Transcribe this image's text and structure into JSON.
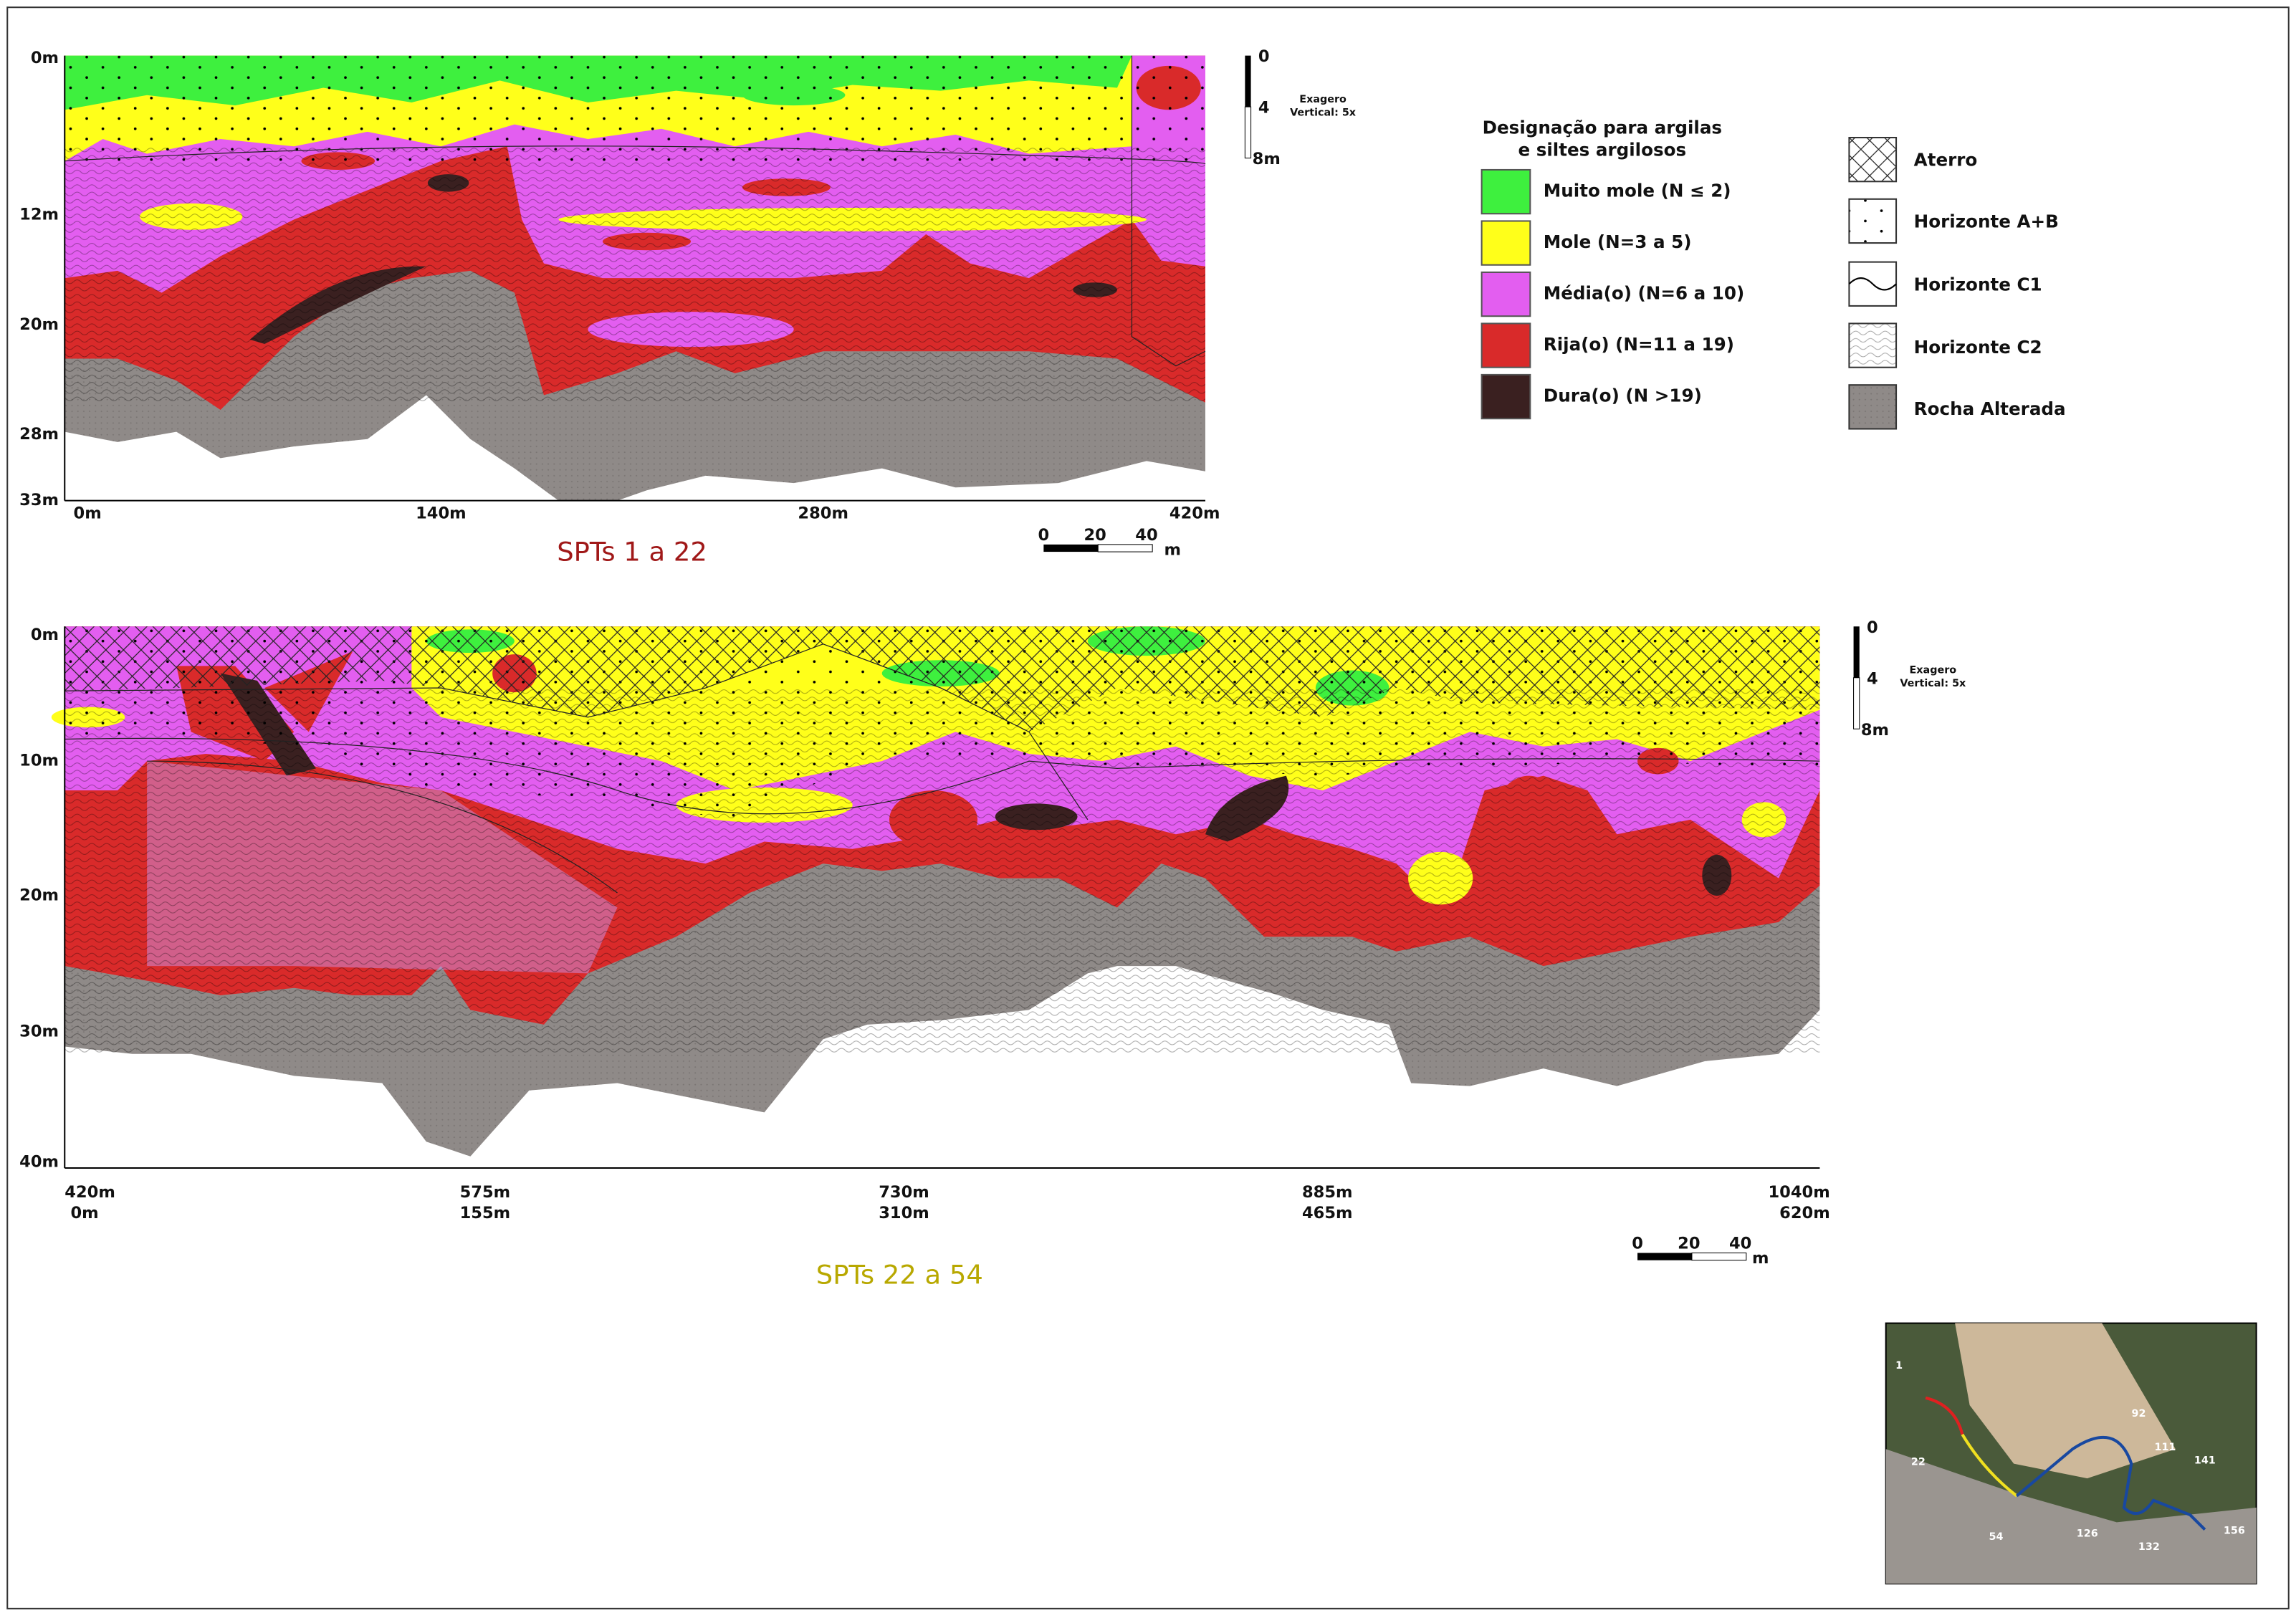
{
  "sections": [
    {
      "title": "SPTs 1 a 22",
      "depth_labels": [
        "0m",
        "12m",
        "20m",
        "28m",
        "33m"
      ],
      "distance_labels": [
        "0m",
        "140m",
        "280m",
        "420m"
      ],
      "vertical_scale": {
        "labels": [
          "0",
          "4",
          "8m"
        ],
        "note": [
          "Exagero",
          "Vertical: 5x"
        ]
      },
      "horizontal_scale": {
        "labels": [
          "0",
          "20",
          "40",
          "m"
        ]
      }
    },
    {
      "title": "SPTs 22 a 54",
      "depth_labels": [
        "0m",
        "10m",
        "20m",
        "30m",
        "40m"
      ],
      "distance_labels": [
        "420m",
        "575m",
        "730m",
        "885m",
        "1040m"
      ],
      "distance_labels_local": [
        "0m",
        "155m",
        "310m",
        "465m",
        "620m"
      ],
      "vertical_scale": {
        "labels": [
          "0",
          "4",
          "8m"
        ],
        "note": [
          "Exagero",
          "Vertical: 5x"
        ]
      },
      "horizontal_scale": {
        "labels": [
          "0",
          "20",
          "40",
          "m"
        ]
      }
    }
  ],
  "legend_consistency": {
    "title": [
      "Designação para argilas",
      "e siltes argilosos"
    ],
    "items": [
      "Muito mole (N ≤ 2)",
      "Mole (N=3 a 5)",
      "Média(o) (N=6 a 10)",
      "Rija(o) (N=11 a 19)",
      "Dura(o) (N >19)"
    ]
  },
  "legend_horizons": {
    "items": [
      "Aterro",
      "Horizonte A+B",
      "Horizonte C1",
      "Horizonte C2",
      "Rocha Alterada"
    ]
  },
  "location_map": {
    "labels": [
      "1",
      "22",
      "54",
      "92",
      "111",
      "141",
      "126",
      "132",
      "156"
    ]
  }
}
